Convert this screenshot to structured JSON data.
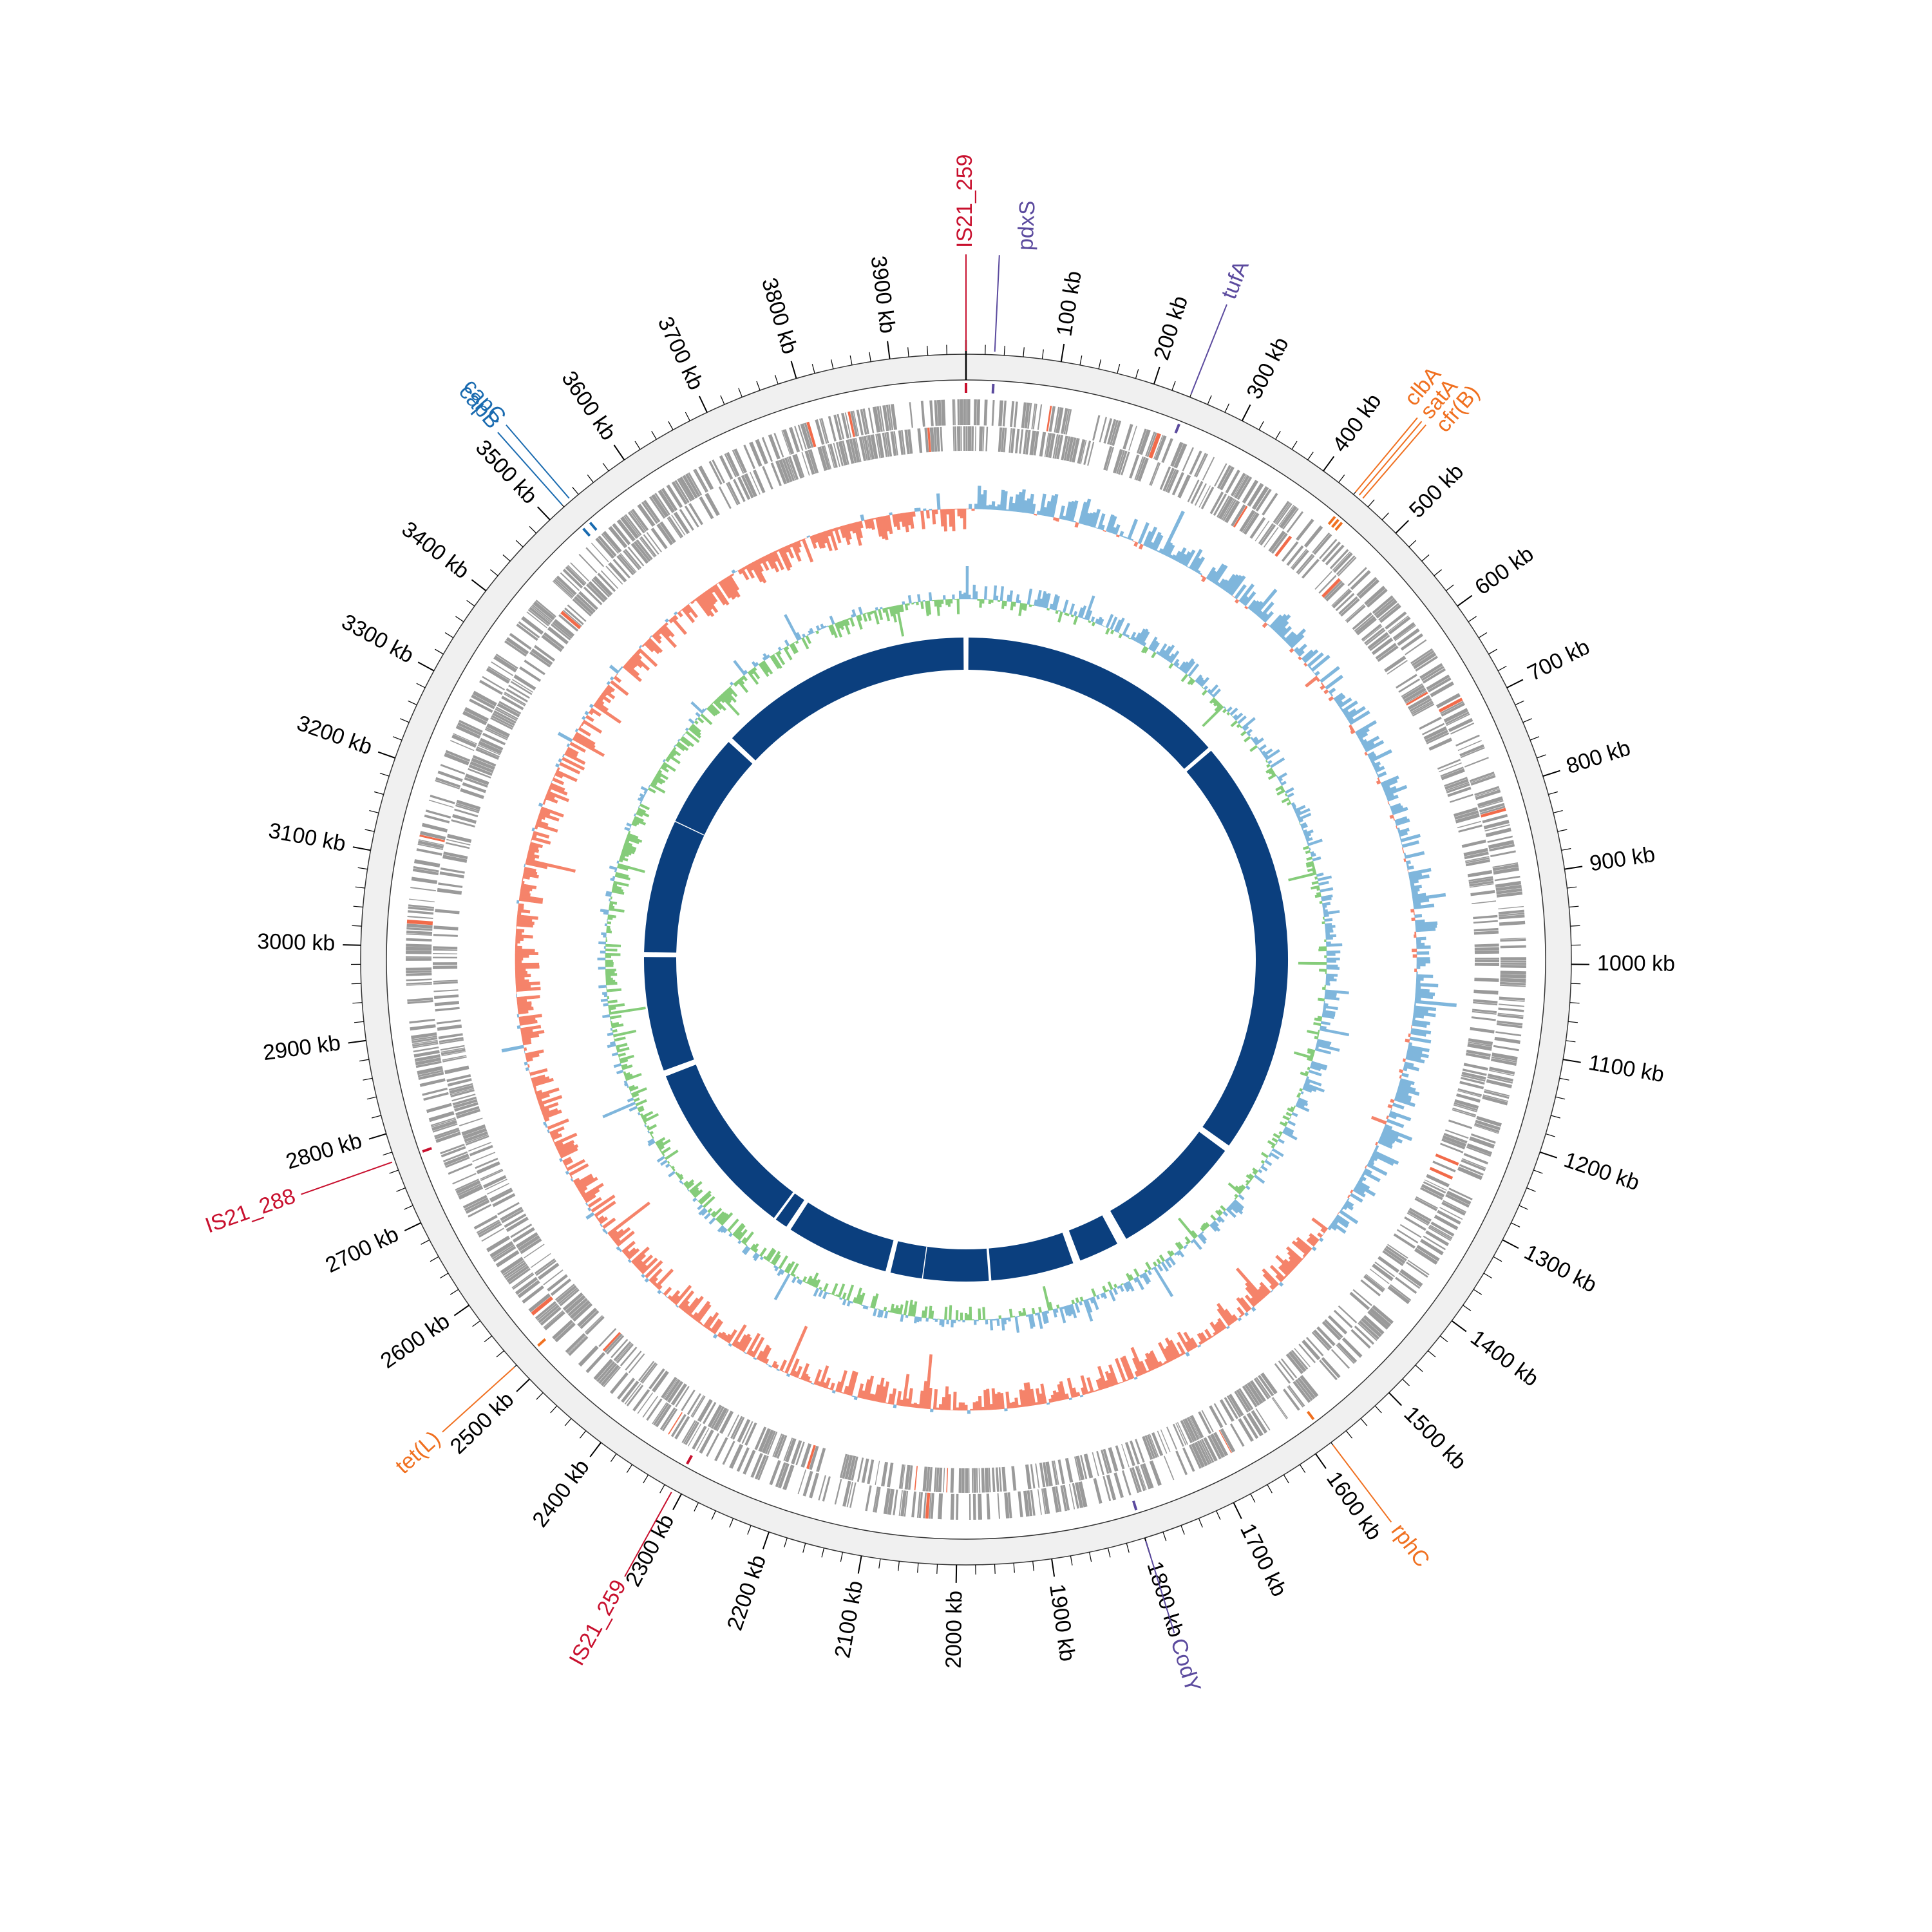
{
  "genome": {
    "length_kb": 3980,
    "tick_labels": [
      "100 kb",
      "200 kb",
      "300 kb",
      "400 kb",
      "500 kb",
      "600 kb",
      "700 kb",
      "800 kb",
      "900 kb",
      "1000 kb",
      "1100 kb",
      "1200 kb",
      "1300 kb",
      "1400 kb",
      "1500 kb",
      "1600 kb",
      "1700 kb",
      "1800 kb",
      "1900 kb",
      "2000 kb",
      "2100 kb",
      "2200 kb",
      "2300 kb",
      "2400 kb",
      "2500 kb",
      "2600 kb",
      "2700 kb",
      "2800 kb",
      "2900 kb",
      "3000 kb",
      "3100 kb",
      "3200 kb",
      "3300 kb",
      "3400 kb",
      "3500 kb",
      "3600 kb",
      "3700 kb",
      "3800 kb",
      "3900 kb"
    ]
  },
  "annotations": [
    {
      "label": "IS21_259",
      "position_kb": 0,
      "color": "#c8102e"
    },
    {
      "label": "pdxS",
      "position_kb": 30,
      "color": "#5b4a9e"
    },
    {
      "label": "tufA",
      "position_kb": 240,
      "color": "#5b4a9e"
    },
    {
      "label": "clbA",
      "position_kb": 440,
      "color": "#f07020"
    },
    {
      "label": "satA",
      "position_kb": 445,
      "color": "#f07020"
    },
    {
      "label": "cfr(B)",
      "position_kb": 450,
      "color": "#f07020"
    },
    {
      "label": "rphC",
      "position_kb": 1580,
      "color": "#f07020"
    },
    {
      "label": "CodY",
      "position_kb": 1800,
      "color": "#5b4a9e"
    },
    {
      "label": "IS21_259",
      "position_kb": 2310,
      "color": "#c8102e"
    },
    {
      "label": "tet(L)",
      "position_kb": 2520,
      "color": "#f07020"
    },
    {
      "label": "IS21_288",
      "position_kb": 2770,
      "color": "#c8102e"
    },
    {
      "label": "capC",
      "position_kb": 3520,
      "color": "#1a6bb0"
    },
    {
      "label": "capB",
      "position_kb": 3530,
      "color": "#1a6bb0"
    }
  ],
  "tracks": {
    "gene_color": "#9a9a9a",
    "gene_highlight_color": "#f26b4a",
    "gc_content_positive_color": "#7fb6dc",
    "gc_content_negative_color": "#f5836a",
    "gc_skew_positive_color": "#7fb6dc",
    "gc_skew_negative_color": "#85cc7a",
    "synteny_color": "#0b3f7e"
  }
}
